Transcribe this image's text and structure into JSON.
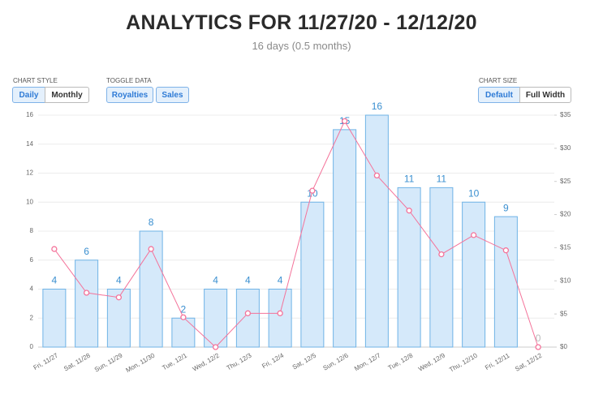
{
  "header": {
    "title": "ANALYTICS FOR 11/27/20 - 12/12/20",
    "subtitle": "16 days (0.5 months)"
  },
  "controls": {
    "chart_style": {
      "label": "CHART STYLE",
      "options": [
        "Daily",
        "Monthly"
      ],
      "active": 0
    },
    "toggle_data": {
      "label": "TOGGLE DATA"
    },
    "chart_size": {
      "label": "CHART SIZE",
      "options": [
        "Default",
        "Full Width"
      ],
      "active": 0
    }
  },
  "chart_data": {
    "type": "bar-line",
    "categories": [
      "Fri, 11/27",
      "Sat, 11/28",
      "Sun, 11/29",
      "Mon, 11/30",
      "Tue, 12/1",
      "Wed, 12/2",
      "Thu, 12/3",
      "Fri, 12/4",
      "Sat, 12/5",
      "Sun, 12/6",
      "Mon, 12/7",
      "Tue, 12/8",
      "Wed, 12/9",
      "Thu, 12/10",
      "Fri, 12/11",
      "Sat, 12/12"
    ],
    "series": [
      {
        "name": "Sales",
        "type": "bar",
        "color": "#d5e9fa",
        "stroke": "#6fb3e6",
        "values": [
          4,
          6,
          4,
          8,
          2,
          4,
          4,
          4,
          10,
          15,
          16,
          11,
          11,
          10,
          9,
          0
        ]
      },
      {
        "name": "Royalties",
        "type": "line",
        "axis": "y2",
        "color": "#f4739a",
        "values": [
          14.8,
          8.2,
          7.5,
          14.8,
          4.5,
          0,
          5.1,
          5.1,
          23.6,
          34.1,
          25.9,
          20.6,
          14.0,
          16.9,
          14.6,
          0
        ]
      }
    ],
    "ylim": [
      0,
      16
    ],
    "yticks": [
      0,
      2,
      4,
      6,
      8,
      10,
      12,
      14,
      16
    ],
    "y2lim": [
      0,
      35
    ],
    "y2ticks": [
      {
        "value": 0,
        "label": "$0"
      },
      {
        "value": 5,
        "label": "$5"
      },
      {
        "value": 10,
        "label": "$10"
      },
      {
        "value": 15,
        "label": "$15"
      },
      {
        "value": 20,
        "label": "$20"
      },
      {
        "value": 25,
        "label": "$25"
      },
      {
        "value": 30,
        "label": "$30"
      },
      {
        "value": 35,
        "label": "$35"
      }
    ],
    "grid": true
  }
}
